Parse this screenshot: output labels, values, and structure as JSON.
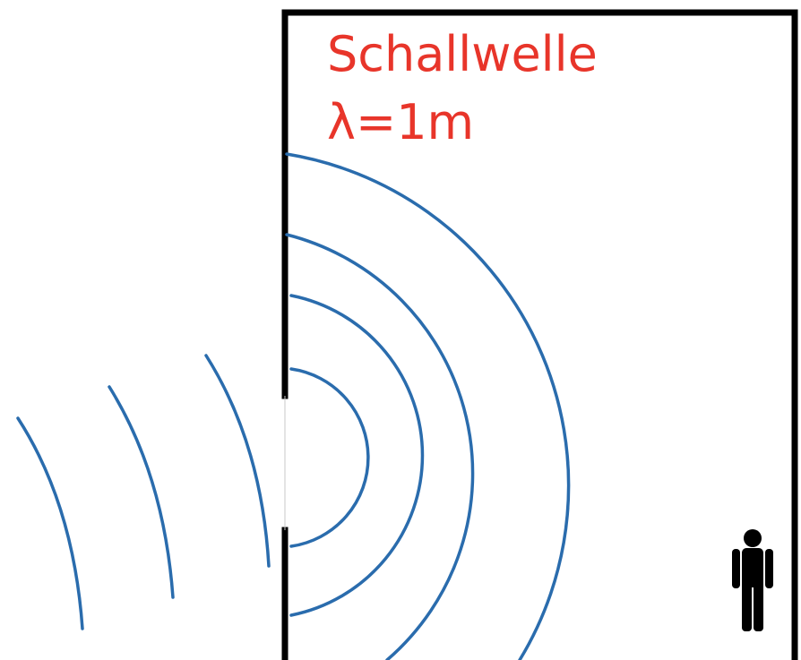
{
  "title": "Schallwelle",
  "wavelength_label": "λ=1m",
  "colors": {
    "label": "#e8352a",
    "wave": "#2a6cad",
    "wall": "#000000",
    "person": "#000000"
  },
  "icons": {
    "person": "person-icon"
  }
}
